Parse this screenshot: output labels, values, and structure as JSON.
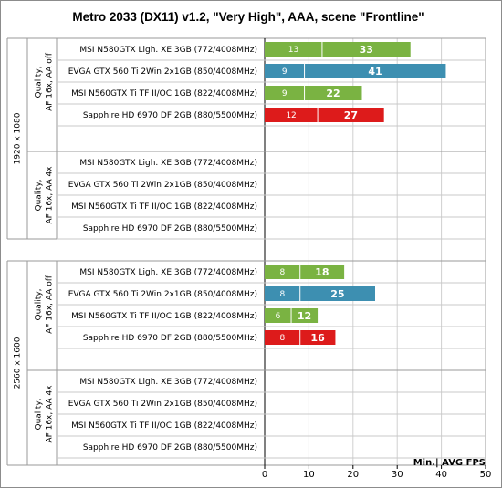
{
  "chart_data": {
    "type": "bar",
    "title": "Metro 2033  (DX11) v1.2, \"Very High\", AAA, scene \"Frontline\"",
    "legend_note": "Min.| AVG FPS",
    "xlim": [
      0,
      50
    ],
    "xticks": [
      0,
      10,
      20,
      30,
      40,
      50
    ],
    "colors": {
      "MSI": "#7ab342",
      "EVGA": "#3d8fb1",
      "Sapphire": "#dd1b1b"
    },
    "groups": [
      {
        "resolution": "1920 x 1080",
        "setting": "Quality, AF 16x, AA off",
        "setting_lines": [
          "Quality,",
          "AF 16x,  AA off"
        ],
        "entries": [
          {
            "label": "MSI N580GTX Ligh. XE 3GB (772/4008MHz)",
            "color_key": "MSI",
            "min": 13,
            "avg": 33
          },
          {
            "label": "EVGA GTX 560 Ti 2Win 2x1GB (850/4008MHz)",
            "color_key": "EVGA",
            "min": 9,
            "avg": 41
          },
          {
            "label": "MSI N560GTX Ti TF II/OC 1GB (822/4008MHz)",
            "color_key": "MSI",
            "min": 9,
            "avg": 22
          },
          {
            "label": "Sapphire HD 6970 DF 2GB (880/5500MHz)",
            "color_key": "Sapphire",
            "min": 12,
            "avg": 27
          }
        ]
      },
      {
        "resolution": "1920 x 1080",
        "setting": "Quality, AF 16x, AA 4x",
        "setting_lines": [
          "Quality,",
          "AF 16x,  AA 4x"
        ],
        "entries": [
          {
            "label": "MSI N580GTX Ligh. XE 3GB (772/4008MHz)",
            "color_key": "MSI",
            "min": null,
            "avg": null
          },
          {
            "label": "EVGA GTX 560 Ti 2Win 2x1GB (850/4008MHz)",
            "color_key": "EVGA",
            "min": null,
            "avg": null
          },
          {
            "label": "MSI N560GTX Ti TF II/OC 1GB (822/4008MHz)",
            "color_key": "MSI",
            "min": null,
            "avg": null
          },
          {
            "label": "Sapphire HD 6970 DF 2GB (880/5500MHz)",
            "color_key": "Sapphire",
            "min": null,
            "avg": null
          }
        ]
      },
      {
        "resolution": "2560 x 1600",
        "setting": "Quality, AF 16x, AA off",
        "setting_lines": [
          "Quality,",
          "AF 16x,  AA off"
        ],
        "entries": [
          {
            "label": "MSI N580GTX Ligh. XE 3GB (772/4008MHz)",
            "color_key": "MSI",
            "min": 8,
            "avg": 18
          },
          {
            "label": "EVGA GTX 560 Ti 2Win 2x1GB (850/4008MHz)",
            "color_key": "EVGA",
            "min": 8,
            "avg": 25
          },
          {
            "label": "MSI N560GTX Ti TF II/OC 1GB (822/4008MHz)",
            "color_key": "MSI",
            "min": 6,
            "avg": 12
          },
          {
            "label": "Sapphire HD 6970 DF 2GB (880/5500MHz)",
            "color_key": "Sapphire",
            "min": 8,
            "avg": 16
          }
        ]
      },
      {
        "resolution": "2560 x 1600",
        "setting": "Quality, AF 16x, AA 4x",
        "setting_lines": [
          "Quality,",
          "AF 16x,  AA 4x"
        ],
        "entries": [
          {
            "label": "MSI N580GTX Ligh. XE 3GB (772/4008MHz)",
            "color_key": "MSI",
            "min": null,
            "avg": null
          },
          {
            "label": "EVGA GTX 560 Ti 2Win 2x1GB (850/4008MHz)",
            "color_key": "EVGA",
            "min": null,
            "avg": null
          },
          {
            "label": "MSI N560GTX Ti TF II/OC 1GB (822/4008MHz)",
            "color_key": "MSI",
            "min": null,
            "avg": null
          },
          {
            "label": "Sapphire HD 6970 DF 2GB (880/5500MHz)",
            "color_key": "Sapphire",
            "min": null,
            "avg": null
          }
        ]
      }
    ],
    "resolutions": [
      "1920 x 1080",
      "2560 x 1600"
    ],
    "grid": true
  }
}
